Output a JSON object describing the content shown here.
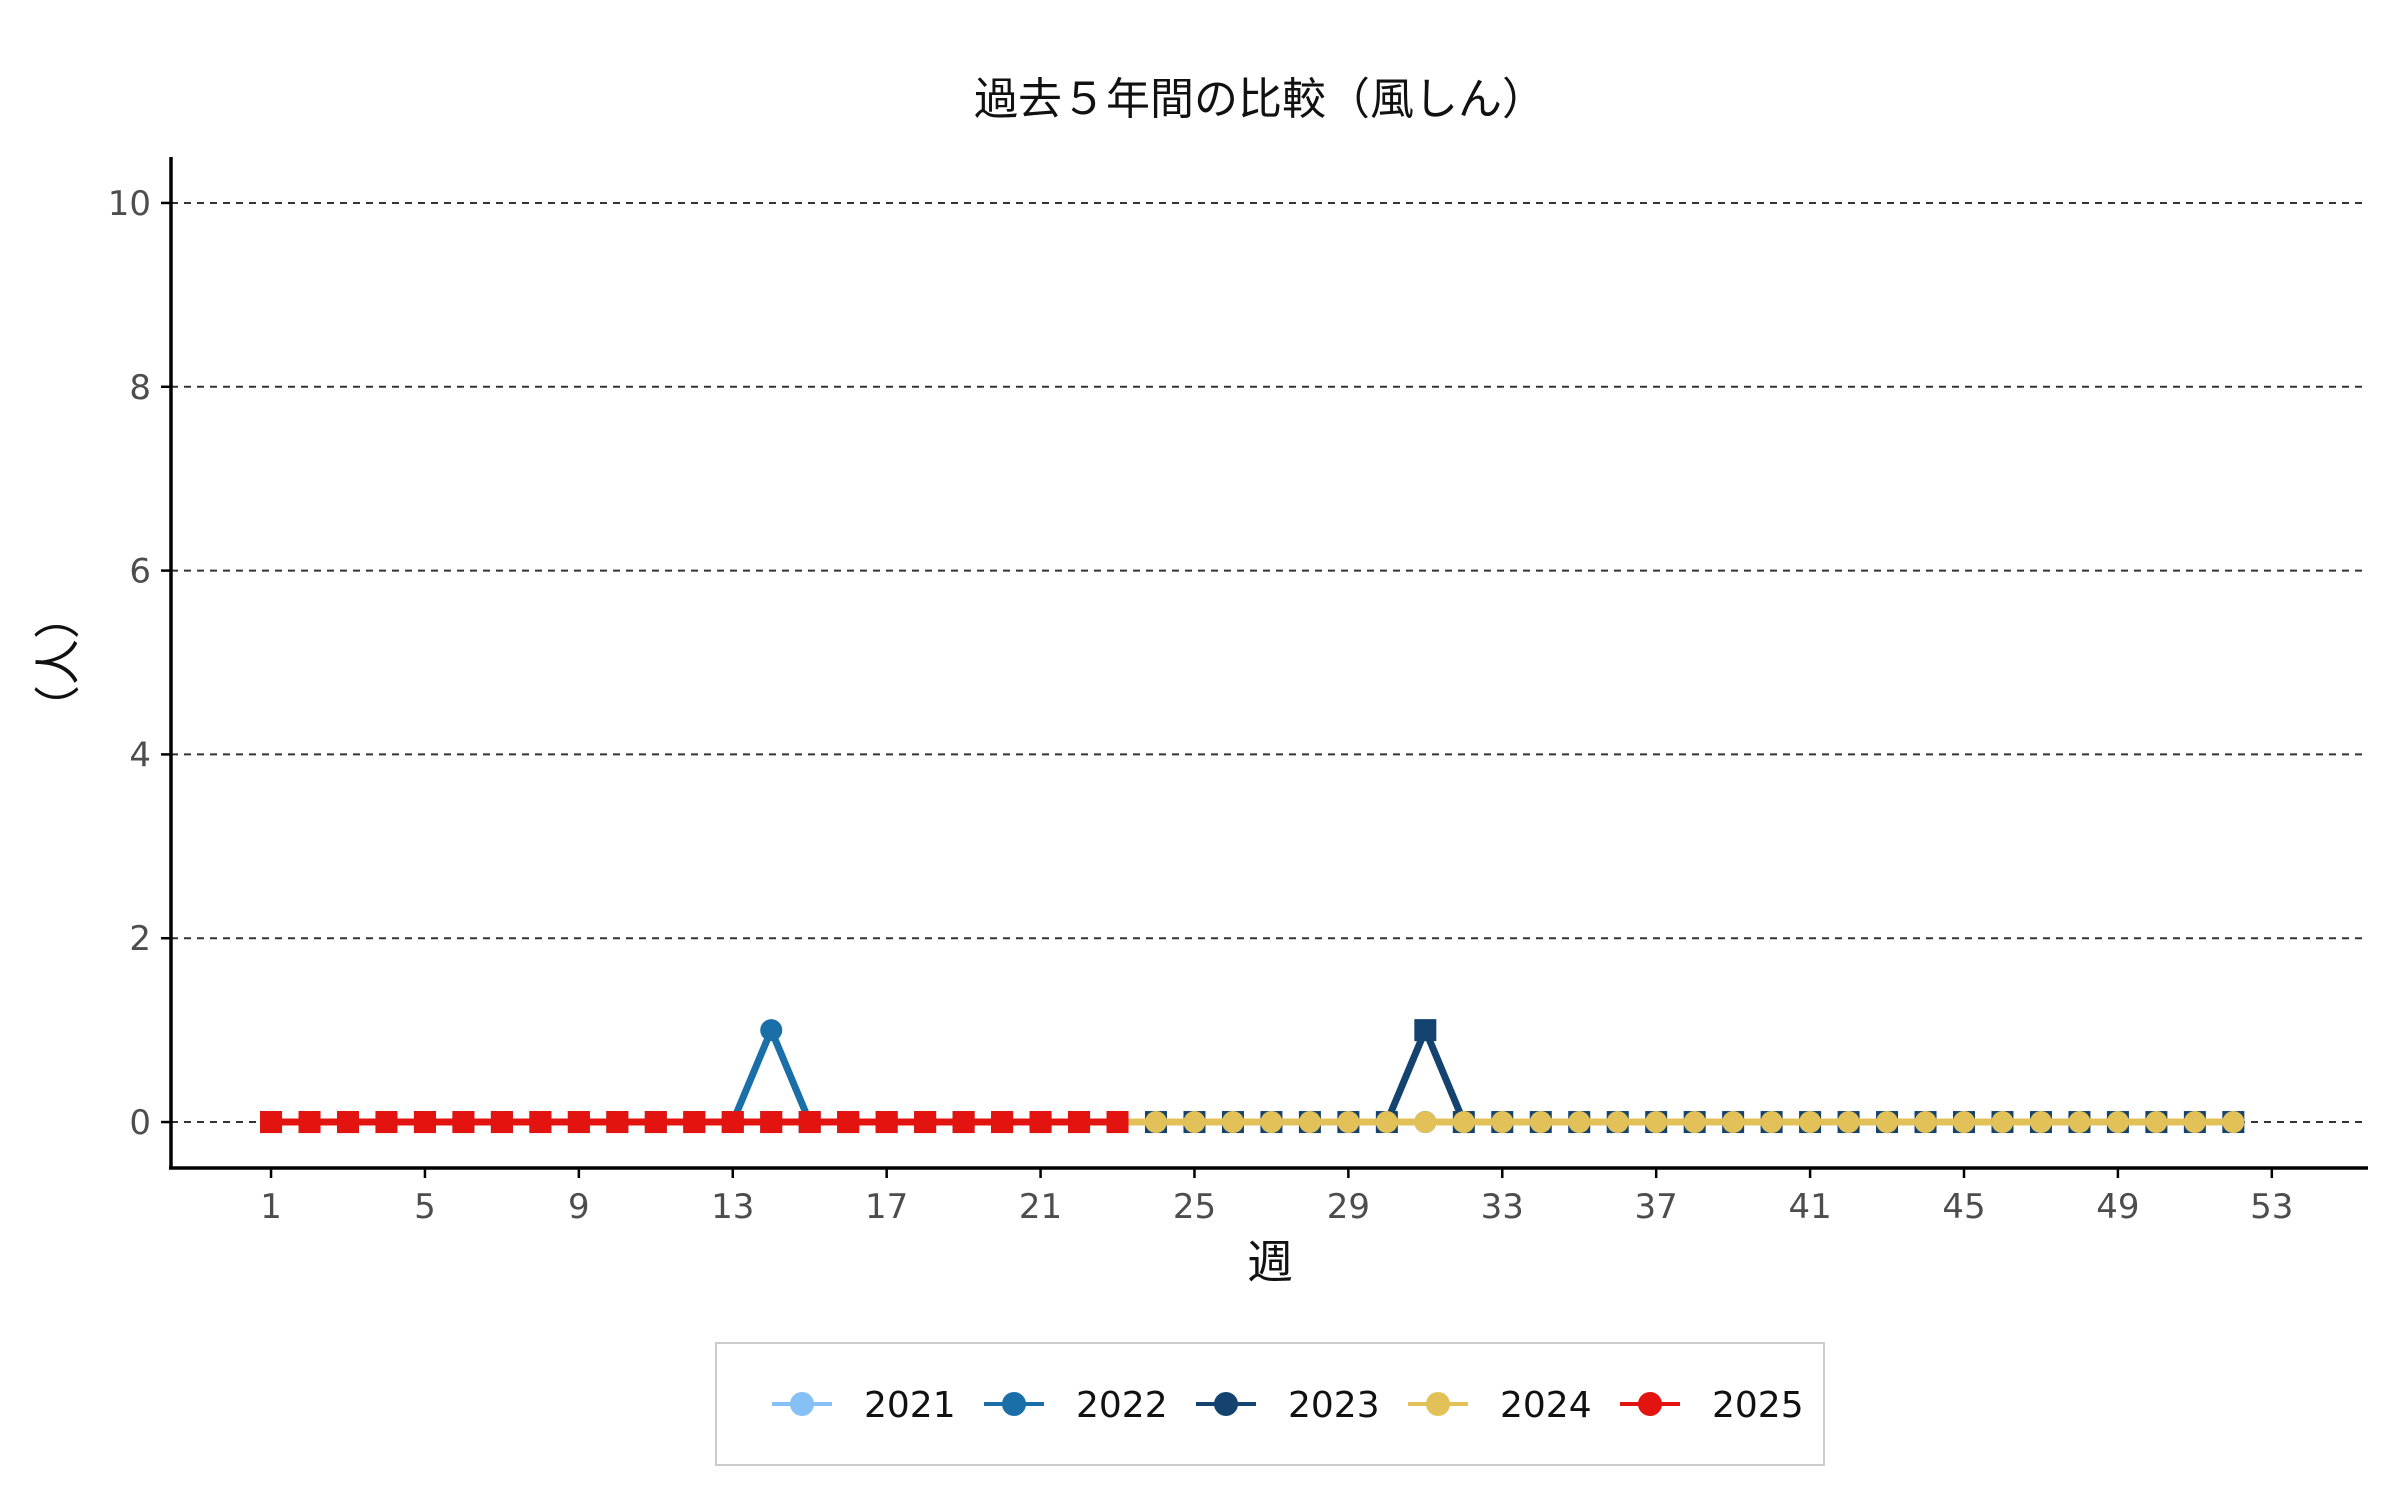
{
  "chart_data": {
    "type": "line",
    "title": "過去５年間の比較（風しん）",
    "xlabel": "週",
    "ylabel": "（人）",
    "xlim": [
      -1.6,
      55.5
    ],
    "ylim": [
      -0.5,
      10.5
    ],
    "x_ticks": [
      1,
      5,
      9,
      13,
      17,
      21,
      25,
      29,
      33,
      37,
      41,
      45,
      49,
      53
    ],
    "y_ticks": [
      0,
      2,
      4,
      6,
      8,
      10
    ],
    "grid": "horizontal dashed",
    "legend_position": "bottom",
    "series": [
      {
        "name": "2021",
        "color": "#85c1f5",
        "marker": "circle",
        "x": [
          1,
          2,
          3,
          4,
          5,
          6,
          7,
          8,
          9,
          10,
          11,
          12,
          13,
          14,
          15,
          16,
          17,
          18,
          19,
          20,
          21,
          22,
          23,
          24,
          25,
          26,
          27,
          28,
          29,
          30,
          31,
          32,
          33,
          34,
          35,
          36,
          37,
          38,
          39,
          40,
          41,
          42,
          43,
          44,
          45,
          46,
          47,
          48,
          49,
          50,
          51,
          52
        ],
        "values": [
          0,
          0,
          0,
          0,
          0,
          0,
          0,
          0,
          0,
          0,
          0,
          0,
          0,
          0,
          0,
          0,
          0,
          0,
          0,
          0,
          0,
          0,
          0,
          0,
          0,
          0,
          0,
          0,
          0,
          0,
          0,
          0,
          0,
          0,
          0,
          0,
          0,
          0,
          0,
          0,
          0,
          0,
          0,
          0,
          0,
          0,
          0,
          0,
          0,
          0,
          0,
          0
        ]
      },
      {
        "name": "2022",
        "color": "#1a6fa8",
        "marker": "circle",
        "x": [
          1,
          2,
          3,
          4,
          5,
          6,
          7,
          8,
          9,
          10,
          11,
          12,
          13,
          14,
          15,
          16,
          17,
          18,
          19,
          20,
          21,
          22,
          23,
          24,
          25,
          26,
          27,
          28,
          29,
          30,
          31,
          32,
          33,
          34,
          35,
          36,
          37,
          38,
          39,
          40,
          41,
          42,
          43,
          44,
          45,
          46,
          47,
          48,
          49,
          50,
          51,
          52
        ],
        "values": [
          0,
          0,
          0,
          0,
          0,
          0,
          0,
          0,
          0,
          0,
          0,
          0,
          0,
          1,
          0,
          0,
          0,
          0,
          0,
          0,
          0,
          0,
          0,
          0,
          0,
          0,
          0,
          0,
          0,
          0,
          0,
          0,
          0,
          0,
          0,
          0,
          0,
          0,
          0,
          0,
          0,
          0,
          0,
          0,
          0,
          0,
          0,
          0,
          0,
          0,
          0,
          0
        ]
      },
      {
        "name": "2023",
        "color": "#14436f",
        "marker": "square",
        "x": [
          1,
          2,
          3,
          4,
          5,
          6,
          7,
          8,
          9,
          10,
          11,
          12,
          13,
          14,
          15,
          16,
          17,
          18,
          19,
          20,
          21,
          22,
          23,
          24,
          25,
          26,
          27,
          28,
          29,
          30,
          31,
          32,
          33,
          34,
          35,
          36,
          37,
          38,
          39,
          40,
          41,
          42,
          43,
          44,
          45,
          46,
          47,
          48,
          49,
          50,
          51,
          52
        ],
        "values": [
          0,
          0,
          0,
          0,
          0,
          0,
          0,
          0,
          0,
          0,
          0,
          0,
          0,
          0,
          0,
          0,
          0,
          0,
          0,
          0,
          0,
          0,
          0,
          0,
          0,
          0,
          0,
          0,
          0,
          0,
          1,
          0,
          0,
          0,
          0,
          0,
          0,
          0,
          0,
          0,
          0,
          0,
          0,
          0,
          0,
          0,
          0,
          0,
          0,
          0,
          0,
          0
        ]
      },
      {
        "name": "2024",
        "color": "#e3c159",
        "marker": "circle",
        "x": [
          1,
          2,
          3,
          4,
          5,
          6,
          7,
          8,
          9,
          10,
          11,
          12,
          13,
          14,
          15,
          16,
          17,
          18,
          19,
          20,
          21,
          22,
          23,
          24,
          25,
          26,
          27,
          28,
          29,
          30,
          31,
          32,
          33,
          34,
          35,
          36,
          37,
          38,
          39,
          40,
          41,
          42,
          43,
          44,
          45,
          46,
          47,
          48,
          49,
          50,
          51,
          52
        ],
        "values": [
          0,
          0,
          0,
          0,
          0,
          0,
          0,
          0,
          0,
          0,
          0,
          0,
          0,
          0,
          0,
          0,
          0,
          0,
          0,
          0,
          0,
          0,
          0,
          0,
          0,
          0,
          0,
          0,
          0,
          0,
          0,
          0,
          0,
          0,
          0,
          0,
          0,
          0,
          0,
          0,
          0,
          0,
          0,
          0,
          0,
          0,
          0,
          0,
          0,
          0,
          0,
          0
        ]
      },
      {
        "name": "2025",
        "color": "#e3140f",
        "marker": "square",
        "x": [
          1,
          2,
          3,
          4,
          5,
          6,
          7,
          8,
          9,
          10,
          11,
          12,
          13,
          14,
          15,
          16,
          17,
          18,
          19,
          20,
          21,
          22,
          23
        ],
        "values": [
          0,
          0,
          0,
          0,
          0,
          0,
          0,
          0,
          0,
          0,
          0,
          0,
          0,
          0,
          0,
          0,
          0,
          0,
          0,
          0,
          0,
          0,
          0
        ]
      }
    ]
  }
}
